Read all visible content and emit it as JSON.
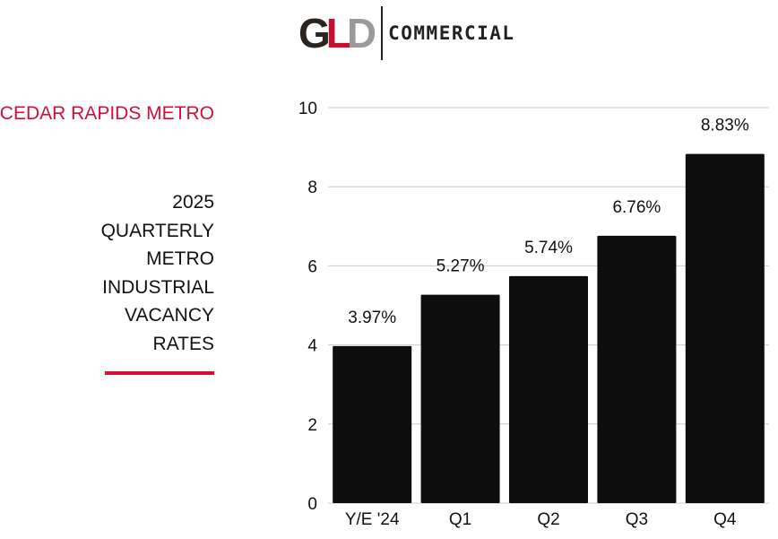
{
  "logo": {
    "mark_letters": [
      {
        "char": "G",
        "color": "#2a2520"
      },
      {
        "char": "L",
        "color": "#c8102e"
      },
      {
        "char": "D",
        "color": "#9a9a9a"
      }
    ],
    "wordmark": "COMMERCIAL"
  },
  "region_label": "CEDAR RAPIDS METRO",
  "title_lines": [
    "2025",
    "QUARTERLY",
    "METRO",
    "INDUSTRIAL",
    "VACANCY",
    "RATES"
  ],
  "colors": {
    "accent": "#d0103a",
    "bar": "#0d0d0d",
    "grid": "#c8c8c8"
  },
  "chart_data": {
    "type": "bar",
    "categories": [
      "Y/E '24",
      "Q1",
      "Q2",
      "Q3",
      "Q4"
    ],
    "values": [
      3.97,
      5.27,
      5.74,
      6.76,
      8.83
    ],
    "data_labels": [
      "3.97%",
      "5.27%",
      "5.74%",
      "6.76%",
      "8.83%"
    ],
    "ylim": [
      0,
      10
    ],
    "yticks": [
      0,
      2,
      4,
      6,
      8,
      10
    ],
    "grid": true,
    "title": "",
    "xlabel": "",
    "ylabel": ""
  }
}
